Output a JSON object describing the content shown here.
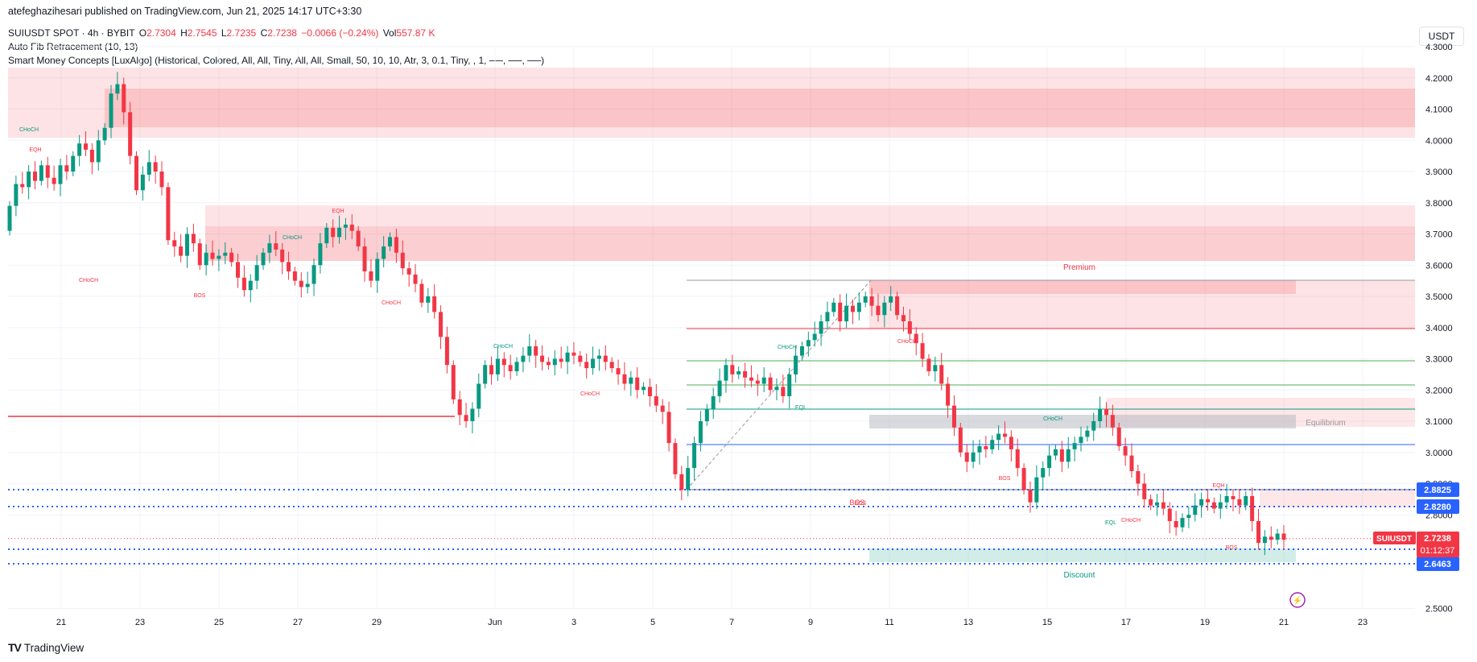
{
  "header": {
    "publisher": "atefeghazihesari published on TradingView.com, Jun 21, 2025 14:17 UTC+3:30",
    "symbol_line": "SUIUSDT SPOT · 4h · BYBIT",
    "ohlc": {
      "o_label": "O",
      "o": "2.7304",
      "h_label": "H",
      "h": "2.7545",
      "l_label": "L",
      "l": "2.7235",
      "c_label": "C",
      "c": "2.7238",
      "change": "−0.0066 (−0.24%)",
      "vol_label": "Vol",
      "vol": "557.87 K"
    },
    "indicator1": "Auto Fib Retracement (10, 13)",
    "indicator2": "Smart Money Concepts [LuxAlgo] (Historical, Colored, All, All, Tiny, All, All, Small, 50, 10, 10, Atr, 3, 0.1, Tiny, , 1, ──, ──, ──)"
  },
  "currency_button": "USDT",
  "footer": {
    "brand": "TradingView",
    "logo": "TV"
  },
  "colors": {
    "up": "#089981",
    "down": "#f23645",
    "blue": "#2962ff",
    "grid": "#f0f3fa",
    "text": "#131722"
  },
  "chart_data": {
    "type": "candlestick",
    "symbol": "SUIUSDT",
    "interval": "4h",
    "ylim": [
      2.48,
      4.24
    ],
    "y_ticks": [
      "4.3000",
      "4.2000",
      "4.1000",
      "4.0000",
      "3.9000",
      "3.8000",
      "3.7000",
      "3.6000",
      "3.5000",
      "3.4000",
      "3.3000",
      "3.2000",
      "3.1000",
      "3.0000",
      "2.9000",
      "2.8000",
      "2.5000"
    ],
    "x_ticks": [
      "21",
      "23",
      "25",
      "27",
      "29",
      "Jun",
      "3",
      "5",
      "7",
      "9",
      "11",
      "13",
      "15",
      "17",
      "19",
      "21",
      "23"
    ],
    "x_tick_days": [
      0,
      2,
      4,
      6,
      8,
      11,
      13,
      15,
      17,
      19,
      21,
      23,
      25,
      27,
      29,
      31,
      33
    ],
    "closes": [
      3.79,
      3.86,
      3.85,
      3.9,
      3.87,
      3.92,
      3.88,
      3.86,
      3.92,
      3.9,
      3.95,
      3.99,
      3.97,
      3.93,
      4.0,
      4.04,
      4.15,
      4.18,
      4.09,
      3.95,
      3.84,
      3.89,
      3.93,
      3.9,
      3.85,
      3.68,
      3.66,
      3.63,
      3.7,
      3.67,
      3.6,
      3.64,
      3.62,
      3.63,
      3.64,
      3.61,
      3.56,
      3.52,
      3.55,
      3.6,
      3.64,
      3.67,
      3.65,
      3.61,
      3.58,
      3.55,
      3.53,
      3.54,
      3.6,
      3.67,
      3.72,
      3.69,
      3.72,
      3.73,
      3.71,
      3.66,
      3.58,
      3.55,
      3.62,
      3.66,
      3.69,
      3.64,
      3.59,
      3.57,
      3.54,
      3.48,
      3.5,
      3.45,
      3.37,
      3.28,
      3.17,
      3.12,
      3.1,
      3.14,
      3.22,
      3.28,
      3.25,
      3.3,
      3.28,
      3.26,
      3.29,
      3.31,
      3.34,
      3.31,
      3.29,
      3.28,
      3.3,
      3.29,
      3.32,
      3.31,
      3.29,
      3.27,
      3.3,
      3.31,
      3.29,
      3.27,
      3.25,
      3.22,
      3.24,
      3.2,
      3.21,
      3.18,
      3.15,
      3.13,
      3.03,
      2.93,
      2.88,
      2.95,
      3.03,
      3.1,
      3.14,
      3.18,
      3.23,
      3.28,
      3.25,
      3.26,
      3.24,
      3.23,
      3.22,
      3.24,
      3.2,
      3.21,
      3.18,
      3.25,
      3.31,
      3.34,
      3.36,
      3.38,
      3.42,
      3.45,
      3.48,
      3.42,
      3.47,
      3.45,
      3.48,
      3.5,
      3.47,
      3.44,
      3.48,
      3.5,
      3.44,
      3.42,
      3.38,
      3.35,
      3.3,
      3.26,
      3.28,
      3.22,
      3.15,
      3.08,
      3.0,
      2.97,
      3.0,
      3.02,
      3.01,
      3.04,
      3.06,
      3.05,
      3.01,
      2.95,
      2.88,
      2.84,
      2.92,
      2.95,
      2.99,
      3.01,
      2.97,
      3.01,
      3.03,
      3.05,
      3.07,
      3.1,
      3.14,
      3.12,
      3.08,
      3.02,
      2.99,
      2.94,
      2.9,
      2.85,
      2.83,
      2.84,
      2.82,
      2.78,
      2.76,
      2.79,
      2.8,
      2.83,
      2.85,
      2.84,
      2.82,
      2.84,
      2.86,
      2.85,
      2.83,
      2.86,
      2.78,
      2.71,
      2.73,
      2.72,
      2.74,
      2.72
    ],
    "levels": {
      "price_label": {
        "name": "SUIUSDT",
        "price": "2.7238",
        "countdown": "01:12:37"
      },
      "blue_labels": [
        "2.8825",
        "2.8280",
        "2.6930",
        "2.6463"
      ],
      "zone_labels": {
        "premium": "Premium",
        "equilibrium": "Equilibrium",
        "discount": "Discount"
      }
    },
    "annotations": [
      "CHoCH",
      "EQH",
      "CHoCH",
      "BOS",
      "CHoCH",
      "EQH",
      "CHoCH",
      "CHoCH",
      "CHoCH",
      "CHoCH",
      "EQL",
      "CHoCH",
      "CHoCH",
      "BOS",
      "BOS",
      "EQL",
      "CHoCH",
      "EQH",
      "BOS"
    ]
  }
}
